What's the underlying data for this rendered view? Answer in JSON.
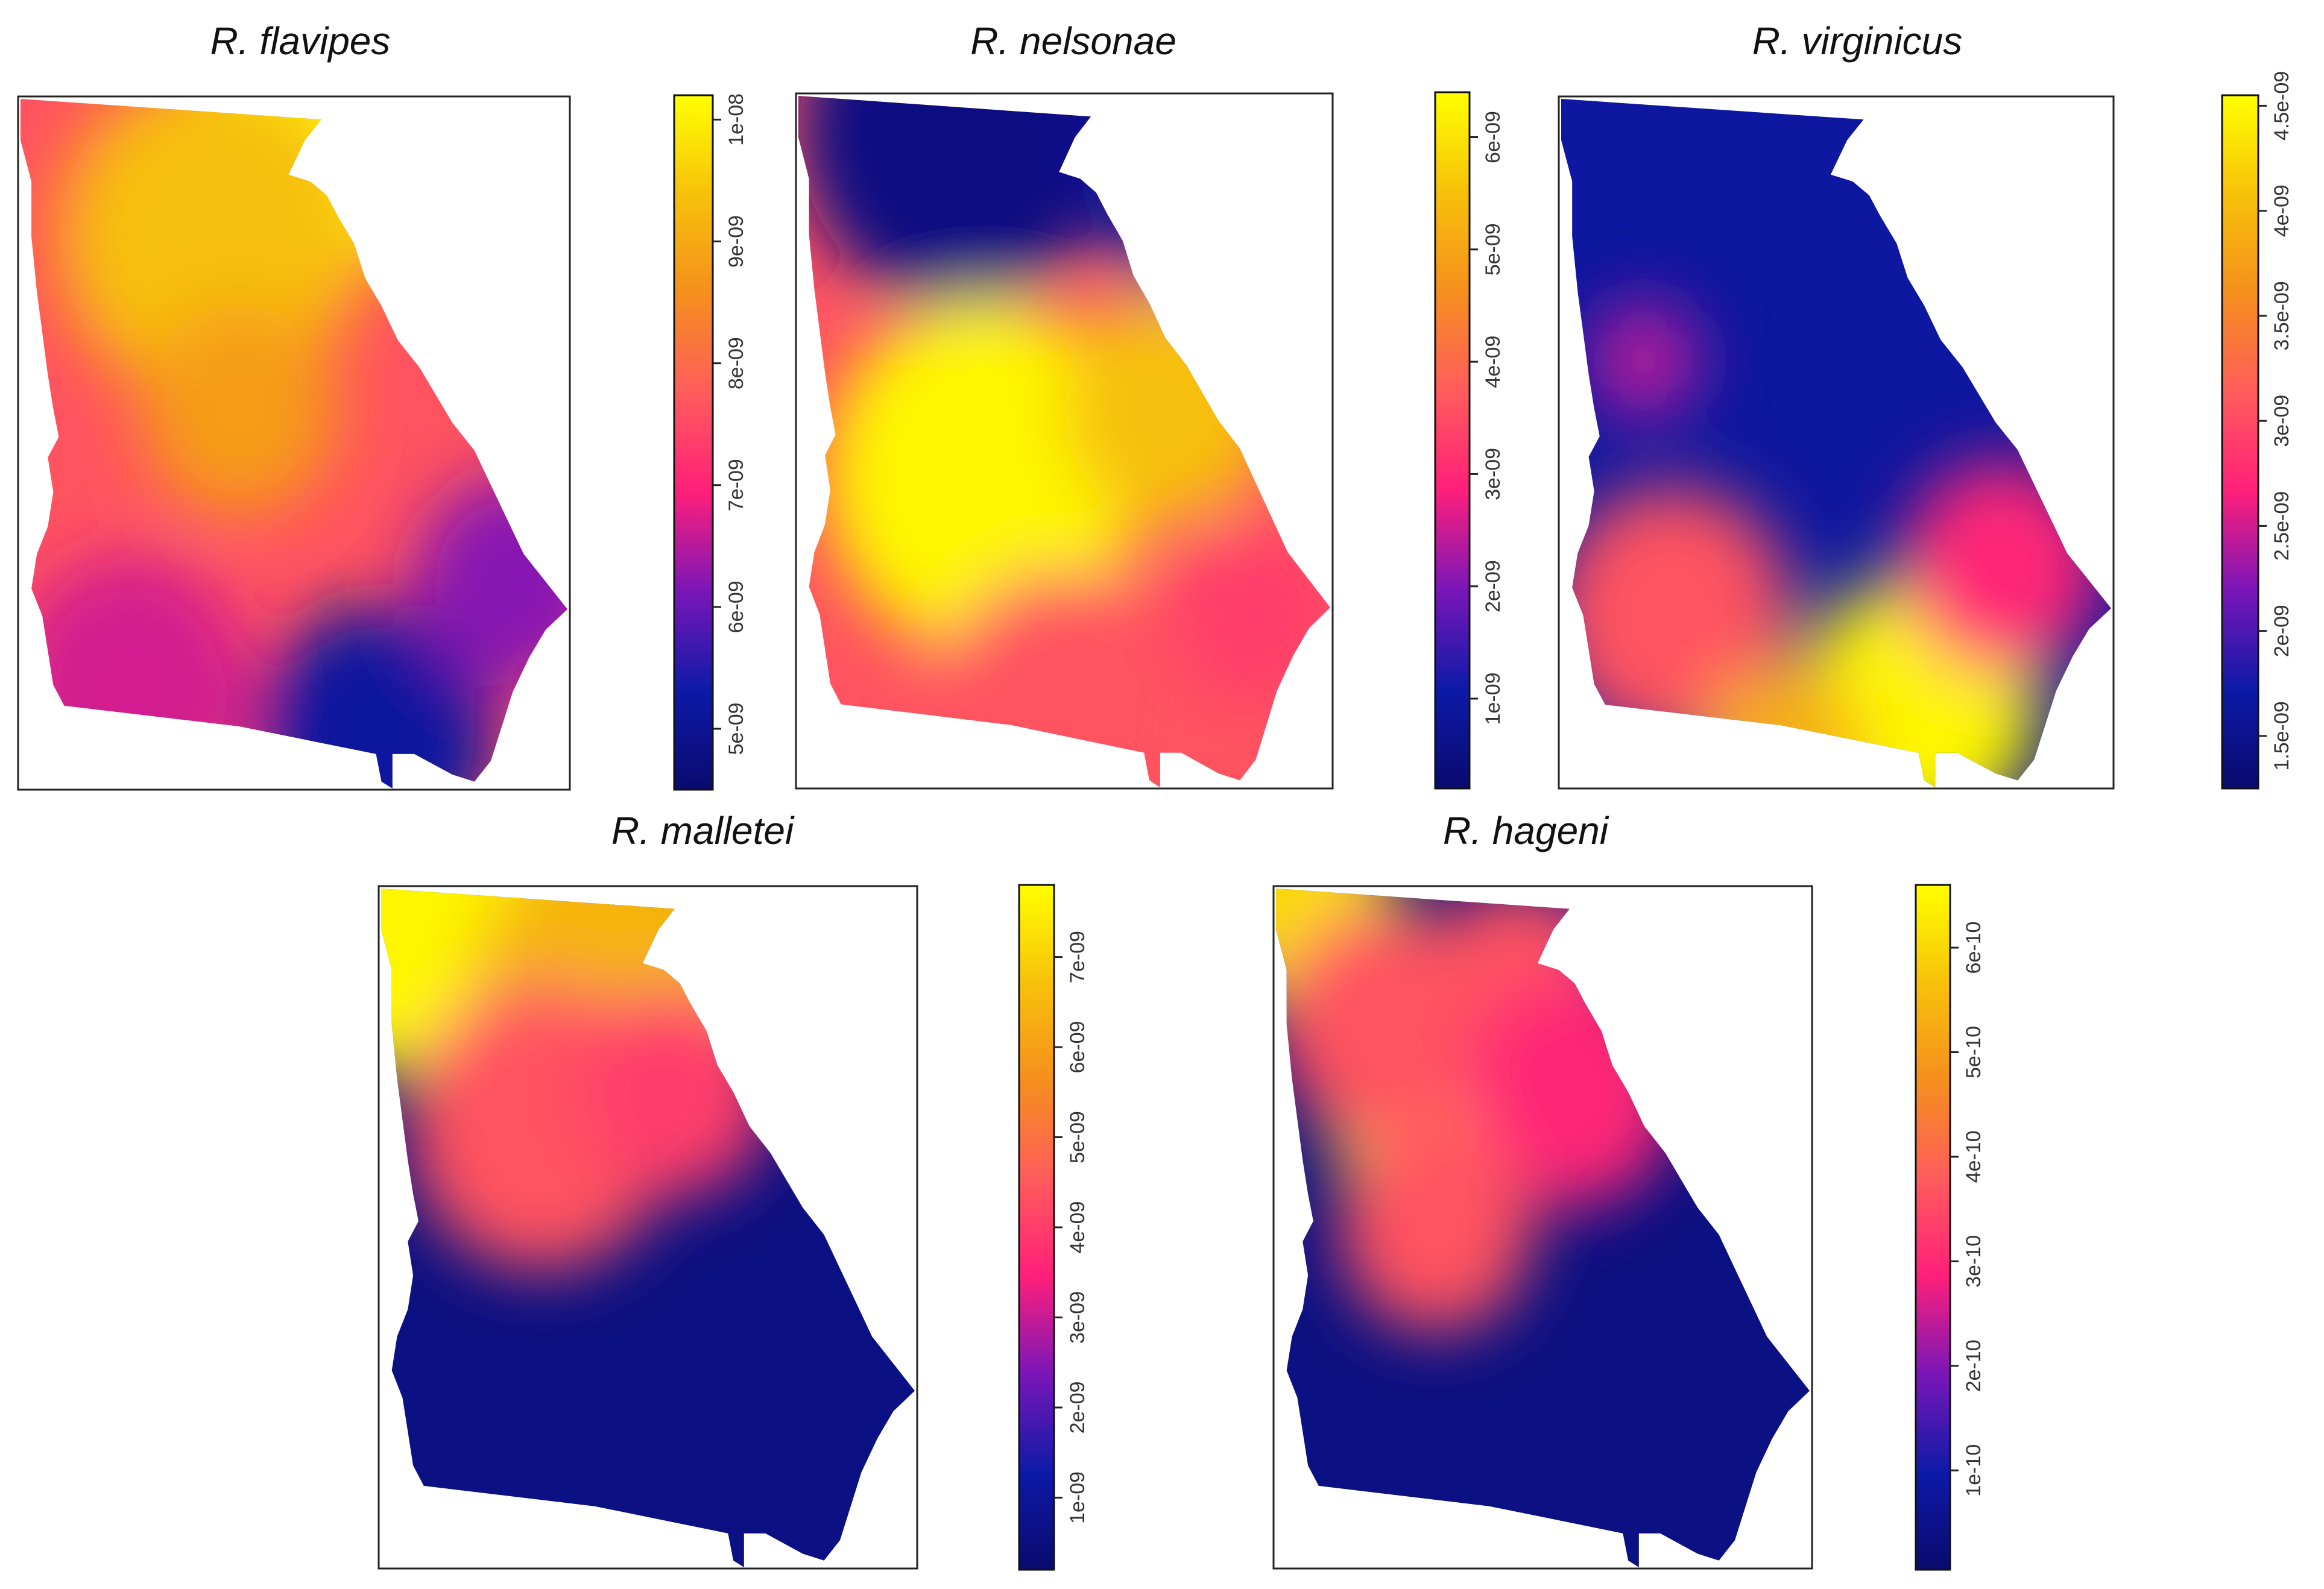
{
  "palette": [
    "#0a0a6e",
    "#0d1aa8",
    "#7a16b8",
    "#ff1f7a",
    "#ff5c5c",
    "#f58f1e",
    "#f7c10a",
    "#ffff00"
  ],
  "chart_data": [
    {
      "type": "heatmap",
      "title": "R. flavipes",
      "colorbar": {
        "min": 4.5e-09,
        "max": 1.02e-08,
        "ticks": [
          {
            "value": 5e-09,
            "label": "5e-09"
          },
          {
            "value": 6e-09,
            "label": "6e-09"
          },
          {
            "value": 7e-09,
            "label": "7e-09"
          },
          {
            "value": 8e-09,
            "label": "8e-09"
          },
          {
            "value": 9e-09,
            "label": "9e-09"
          },
          {
            "value": 1e-08,
            "label": "1e-08"
          }
        ]
      },
      "base_level": 0.55,
      "blobs": [
        {
          "x": 0.55,
          "y": 0.05,
          "r": 0.25,
          "level": 0.98
        },
        {
          "x": 0.35,
          "y": 0.2,
          "r": 0.28,
          "level": 0.85
        },
        {
          "x": 0.4,
          "y": 0.45,
          "r": 0.18,
          "level": 0.75
        },
        {
          "x": 0.2,
          "y": 0.85,
          "r": 0.22,
          "level": 0.38
        },
        {
          "x": 0.65,
          "y": 0.92,
          "r": 0.22,
          "level": 0.12
        },
        {
          "x": 0.9,
          "y": 0.7,
          "r": 0.18,
          "level": 0.3
        }
      ]
    },
    {
      "type": "heatmap",
      "title": "R. nelsonae",
      "colorbar": {
        "min": 2e-10,
        "max": 6.4e-09,
        "ticks": [
          {
            "value": 1e-09,
            "label": "1e-09"
          },
          {
            "value": 2e-09,
            "label": "2e-09"
          },
          {
            "value": 3e-09,
            "label": "3e-09"
          },
          {
            "value": 4e-09,
            "label": "4e-09"
          },
          {
            "value": 5e-09,
            "label": "5e-09"
          },
          {
            "value": 6e-09,
            "label": "6e-09"
          }
        ]
      },
      "base_level": 0.55,
      "blobs": [
        {
          "x": 0.3,
          "y": 0.05,
          "r": 0.3,
          "level": 0.05
        },
        {
          "x": 0.75,
          "y": 0.1,
          "r": 0.22,
          "level": 0.1
        },
        {
          "x": 0.35,
          "y": 0.55,
          "r": 0.3,
          "level": 0.98
        },
        {
          "x": 0.7,
          "y": 0.45,
          "r": 0.2,
          "level": 0.85
        },
        {
          "x": 0.5,
          "y": 0.9,
          "r": 0.25,
          "level": 0.55
        },
        {
          "x": 0.85,
          "y": 0.75,
          "r": 0.15,
          "level": 0.5
        }
      ]
    },
    {
      "type": "heatmap",
      "title": "R. virginicus",
      "colorbar": {
        "min": 1.25e-09,
        "max": 4.55e-09,
        "ticks": [
          {
            "value": 1.5e-09,
            "label": "1.5e-09"
          },
          {
            "value": 2e-09,
            "label": "2e-09"
          },
          {
            "value": 2.5e-09,
            "label": "2.5e-09"
          },
          {
            "value": 3e-09,
            "label": "3e-09"
          },
          {
            "value": 3.5e-09,
            "label": "3.5e-09"
          },
          {
            "value": 4e-09,
            "label": "4e-09"
          },
          {
            "value": 4.5e-09,
            "label": "4.5e-09"
          }
        ]
      },
      "base_level": 0.12,
      "blobs": [
        {
          "x": 0.15,
          "y": 0.38,
          "r": 0.1,
          "level": 0.35
        },
        {
          "x": 0.2,
          "y": 0.75,
          "r": 0.22,
          "level": 0.55
        },
        {
          "x": 0.65,
          "y": 0.88,
          "r": 0.22,
          "level": 0.98
        },
        {
          "x": 0.4,
          "y": 0.95,
          "r": 0.15,
          "level": 0.8
        },
        {
          "x": 0.8,
          "y": 0.68,
          "r": 0.18,
          "level": 0.45
        }
      ]
    },
    {
      "type": "heatmap",
      "title": "R. malletei",
      "colorbar": {
        "min": 2e-10,
        "max": 7.8e-09,
        "ticks": [
          {
            "value": 1e-09,
            "label": "1e-09"
          },
          {
            "value": 2e-09,
            "label": "2e-09"
          },
          {
            "value": 3e-09,
            "label": "3e-09"
          },
          {
            "value": 4e-09,
            "label": "4e-09"
          },
          {
            "value": 5e-09,
            "label": "5e-09"
          },
          {
            "value": 6e-09,
            "label": "6e-09"
          },
          {
            "value": 7e-09,
            "label": "7e-09"
          }
        ]
      },
      "base_level": 0.05,
      "blobs": [
        {
          "x": 0.05,
          "y": 0.02,
          "r": 0.3,
          "level": 0.98
        },
        {
          "x": 0.45,
          "y": 0.15,
          "r": 0.28,
          "level": 0.82
        },
        {
          "x": 0.3,
          "y": 0.35,
          "r": 0.25,
          "level": 0.55
        },
        {
          "x": 0.55,
          "y": 0.3,
          "r": 0.18,
          "level": 0.5
        }
      ]
    },
    {
      "type": "heatmap",
      "title": "R. hageni",
      "colorbar": {
        "min": 5e-12,
        "max": 6.6e-10,
        "ticks": [
          {
            "value": 1e-10,
            "label": "1e-10"
          },
          {
            "value": 2e-10,
            "label": "2e-10"
          },
          {
            "value": 3e-10,
            "label": "3e-10"
          },
          {
            "value": 4e-10,
            "label": "4e-10"
          },
          {
            "value": 5e-10,
            "label": "5e-10"
          },
          {
            "value": 6e-10,
            "label": "6e-10"
          }
        ]
      },
      "base_level": 0.05,
      "blobs": [
        {
          "x": 0.05,
          "y": 0.03,
          "r": 0.18,
          "level": 0.92
        },
        {
          "x": 0.25,
          "y": 0.35,
          "r": 0.15,
          "level": 0.9
        },
        {
          "x": 0.2,
          "y": 0.2,
          "r": 0.2,
          "level": 0.55
        },
        {
          "x": 0.45,
          "y": 0.15,
          "r": 0.18,
          "level": 0.55
        },
        {
          "x": 0.55,
          "y": 0.3,
          "r": 0.2,
          "level": 0.45
        },
        {
          "x": 0.3,
          "y": 0.5,
          "r": 0.18,
          "level": 0.55
        },
        {
          "x": 0.7,
          "y": 0.05,
          "r": 0.12,
          "level": 0.1
        }
      ]
    }
  ]
}
